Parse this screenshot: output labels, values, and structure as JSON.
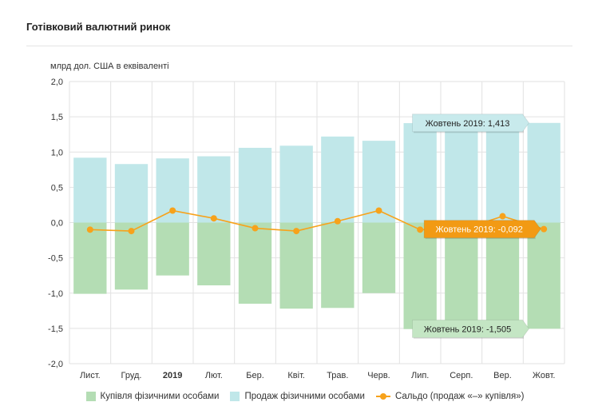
{
  "title": "Готівковий валютний ринок",
  "colors": {
    "buy": "#b4ddb4",
    "sell": "#c0e7e9",
    "balance": "#f7a21b",
    "grid": "#e2e2e2",
    "tooltip_bg": "#c8eaec",
    "tooltip_green_bg": "#c4e6c4",
    "tooltip_orange_bg": "#f29a14"
  },
  "chart_data": {
    "type": "bar",
    "ylabel": "млрд дол. США в еквіваленті",
    "ylim": [
      -2.0,
      2.0
    ],
    "y_ticks": [
      "2,0",
      "1,5",
      "1,0",
      "0,5",
      "0,0",
      "-0,5",
      "-1,0",
      "-1,5",
      "-2,0"
    ],
    "y_tick_values": [
      2.0,
      1.5,
      1.0,
      0.5,
      0.0,
      -0.5,
      -1.0,
      -1.5,
      -2.0
    ],
    "categories": [
      "Лист.",
      "Груд.",
      "2019",
      "Лют.",
      "Бер.",
      "Квіт.",
      "Трав.",
      "Черв.",
      "Лип.",
      "Серп.",
      "Вер.",
      "Жовт."
    ],
    "bold_category": "2019",
    "grid": true,
    "series": [
      {
        "name": "Купівля фізичними особами",
        "type": "bar",
        "values": [
          -1.01,
          -0.95,
          -0.75,
          -0.89,
          -1.15,
          -1.22,
          -1.21,
          -1.0,
          -1.51,
          -1.52,
          -1.42,
          -1.505
        ]
      },
      {
        "name": "Продаж фізичними особами",
        "type": "bar",
        "values": [
          0.92,
          0.83,
          0.91,
          0.94,
          1.06,
          1.09,
          1.22,
          1.16,
          1.41,
          1.41,
          1.52,
          1.413
        ]
      },
      {
        "name": "Сальдо (продаж «–» купівля»)",
        "type": "line",
        "values": [
          -0.1,
          -0.12,
          0.17,
          0.06,
          -0.08,
          -0.12,
          0.02,
          0.17,
          -0.1,
          -0.1,
          0.09,
          -0.092
        ]
      }
    ],
    "legend_position": "bottom",
    "tooltips": [
      {
        "text": "Жовтень 2019: 1,413",
        "series": 1
      },
      {
        "text": "Жовтень 2019: -0,092",
        "series": 2
      },
      {
        "text": "Жовтень 2019: -1,505",
        "series": 0
      }
    ]
  }
}
